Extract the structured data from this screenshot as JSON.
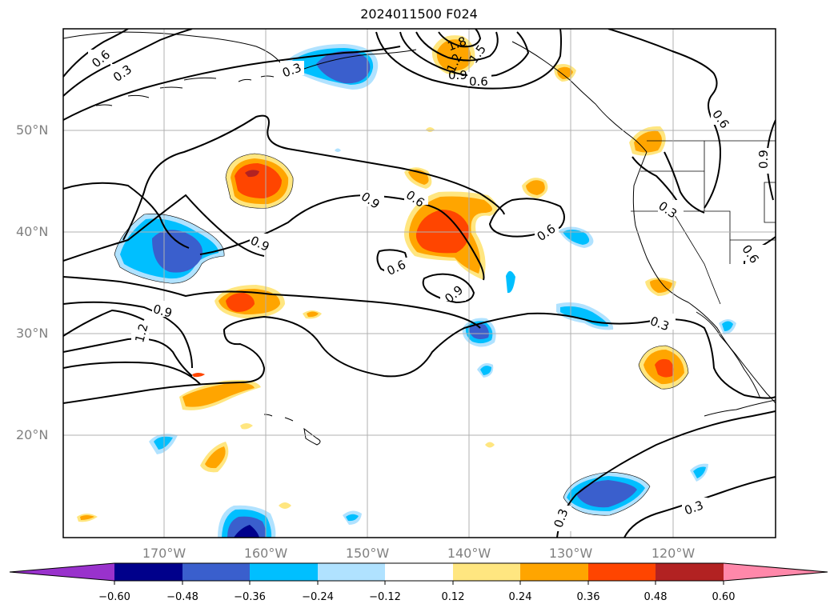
{
  "title": "2024011500 F024",
  "lat_labels": [
    "50°N",
    "40°N",
    "30°N",
    "20°N"
  ],
  "lon_labels": [
    "170°W",
    "160°W",
    "150°W",
    "140°W",
    "130°W",
    "120°W"
  ],
  "colorbar": {
    "tick_labels": [
      "−0.60",
      "−0.48",
      "−0.36",
      "−0.24",
      "−0.12",
      "0.12",
      "0.24",
      "0.36",
      "0.48",
      "0.60"
    ],
    "colors": [
      "#9932cc",
      "#00008b",
      "#3a5fcd",
      "#00bfff",
      "#b0e2ff",
      "#ffffff",
      "#ffe680",
      "#ffa500",
      "#ff4500",
      "#b22222",
      "#ff88aa"
    ]
  },
  "contour_labels": [
    "0.6",
    "0.3",
    "1.8",
    "1.5",
    "1.2",
    "0.9",
    "0.6",
    "0.6",
    "0.9",
    "0.6",
    "0.9",
    "0.6",
    "0.9",
    "0.6",
    "0.3",
    "0.6",
    "0.9",
    "0.3",
    "0.9",
    "1.2",
    "0.3",
    "0.3",
    "0.3"
  ],
  "colors": {
    "dark_blue": "#3a5fcd",
    "navy": "#00008b",
    "cyan": "#00bfff",
    "light_blue": "#b0e2ff",
    "yellow": "#ffe680",
    "orange": "#ffa500",
    "red_orange": "#ff4500",
    "dark_red": "#b22222"
  }
}
